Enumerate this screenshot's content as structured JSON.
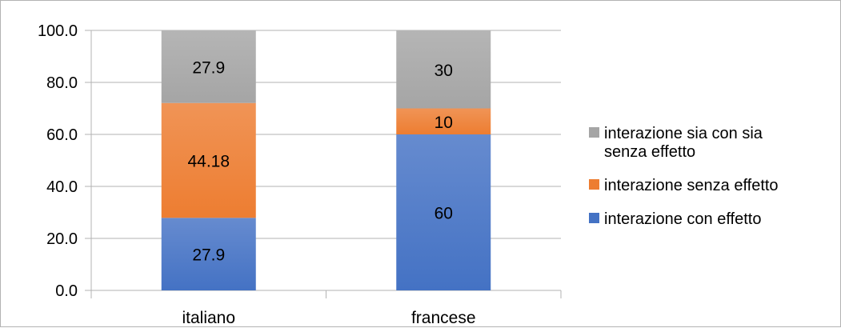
{
  "chart_data": {
    "type": "bar",
    "stacked": true,
    "categories": [
      "italiano",
      "francese"
    ],
    "series": [
      {
        "name": "interazione con effetto",
        "values": [
          27.9,
          60
        ],
        "labels": [
          "27.9",
          "60"
        ],
        "color": "#4472C4"
      },
      {
        "name": "interazione senza effetto",
        "values": [
          44.18,
          10
        ],
        "labels": [
          "44.18",
          "10"
        ],
        "color": "#ED7D31"
      },
      {
        "name": "interazione sia con sia senza effetto",
        "values": [
          27.9,
          30
        ],
        "labels": [
          "27.9",
          "30"
        ],
        "color": "#A5A5A5"
      }
    ],
    "legend_order": [
      2,
      1,
      0
    ],
    "legend_lines": [
      [
        "interazione sia con sia",
        "senza effetto"
      ],
      [
        "interazione senza effetto"
      ],
      [
        "interazione con effetto"
      ]
    ],
    "yticks": [
      "0.0",
      "20.0",
      "40.0",
      "60.0",
      "80.0",
      "100.0"
    ],
    "ylim": [
      0,
      100
    ],
    "grid": true,
    "legend_position": "right",
    "title": "",
    "xlabel": "",
    "ylabel": ""
  }
}
